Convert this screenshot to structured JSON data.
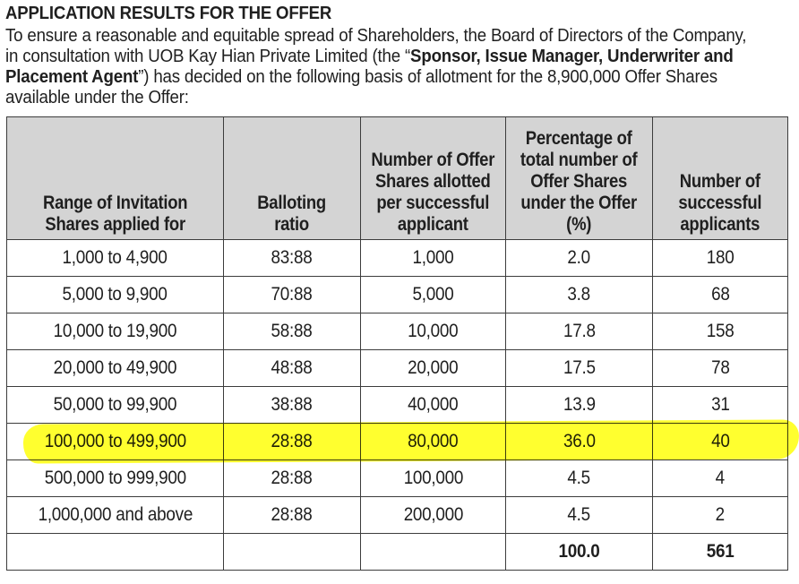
{
  "title": "APPLICATION RESULTS FOR THE OFFER",
  "intro": {
    "line1": "To ensure a reasonable and equitable spread of Shareholders, the Board of Directors of the Company,",
    "line2_pre": "in consultation with UOB Kay Hian Private Limited (the “",
    "line2_bold": "Sponsor, Issue Manager, Underwriter and",
    "line3_bold": "Placement Agent",
    "line3_post": "”) has decided on the following basis of allotment for the 8,900,000 Offer Shares",
    "line4": "available under the Offer:"
  },
  "table": {
    "headers": [
      [
        "Range of Invitation",
        "Shares applied for"
      ],
      [
        "Balloting",
        "ratio"
      ],
      [
        "Number of Offer",
        "Shares allotted",
        "per successful",
        "applicant"
      ],
      [
        "Percentage of",
        "total number of",
        "Offer Shares",
        "under the Offer",
        "(%)"
      ],
      [
        "Number of",
        "successful",
        "applicants"
      ]
    ],
    "rows": [
      {
        "range": "1,000 to 4,900",
        "ratio": "83:88",
        "allotted": "1,000",
        "pct": "2.0",
        "applicants": "180"
      },
      {
        "range": "5,000 to 9,900",
        "ratio": "70:88",
        "allotted": "5,000",
        "pct": "3.8",
        "applicants": "68"
      },
      {
        "range": "10,000 to 19,900",
        "ratio": "58:88",
        "allotted": "10,000",
        "pct": "17.8",
        "applicants": "158"
      },
      {
        "range": "20,000 to 49,900",
        "ratio": "48:88",
        "allotted": "20,000",
        "pct": "17.5",
        "applicants": "78"
      },
      {
        "range": "50,000 to 99,900",
        "ratio": "38:88",
        "allotted": "40,000",
        "pct": "13.9",
        "applicants": "31"
      },
      {
        "range": "100,000 to 499,900",
        "ratio": "28:88",
        "allotted": "80,000",
        "pct": "36.0",
        "applicants": "40"
      },
      {
        "range": "500,000 to 999,900",
        "ratio": "28:88",
        "allotted": "100,000",
        "pct": "4.5",
        "applicants": "4"
      },
      {
        "range": "1,000,000 and above",
        "ratio": "28:88",
        "allotted": "200,000",
        "pct": "4.5",
        "applicants": "2"
      }
    ],
    "total": {
      "pct": "100.0",
      "applicants": "561"
    }
  },
  "colors": {
    "highlight": "#ffff18",
    "header_bg": "#d4d4d4",
    "border": "#3c3c3c"
  }
}
